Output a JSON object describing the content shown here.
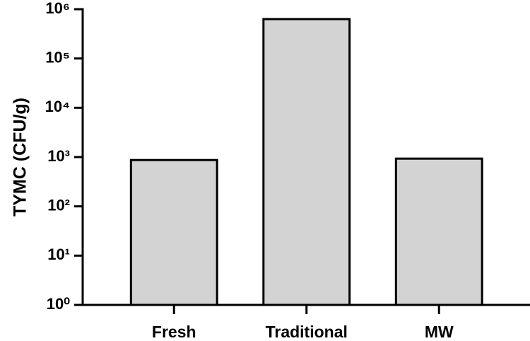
{
  "chart_data": {
    "type": "bar",
    "y_label": "TYMC (CFU/g)",
    "categories": [
      "Fresh",
      "Traditional",
      "MW"
    ],
    "values": [
      870,
      630000,
      930
    ],
    "color": "#d3d3d3",
    "log_scale": true,
    "ylim": [
      1,
      1000000
    ],
    "yticks": [
      {
        "value": 1,
        "label": "10⁰"
      },
      {
        "value": 10,
        "label": "10¹"
      },
      {
        "value": 100,
        "label": "10²"
      },
      {
        "value": 1000,
        "label": "10³"
      },
      {
        "value": 10000,
        "label": "10⁴"
      },
      {
        "value": 100000,
        "label": "10⁵"
      },
      {
        "value": 1000000,
        "label": "10⁶"
      }
    ],
    "grid": false
  }
}
